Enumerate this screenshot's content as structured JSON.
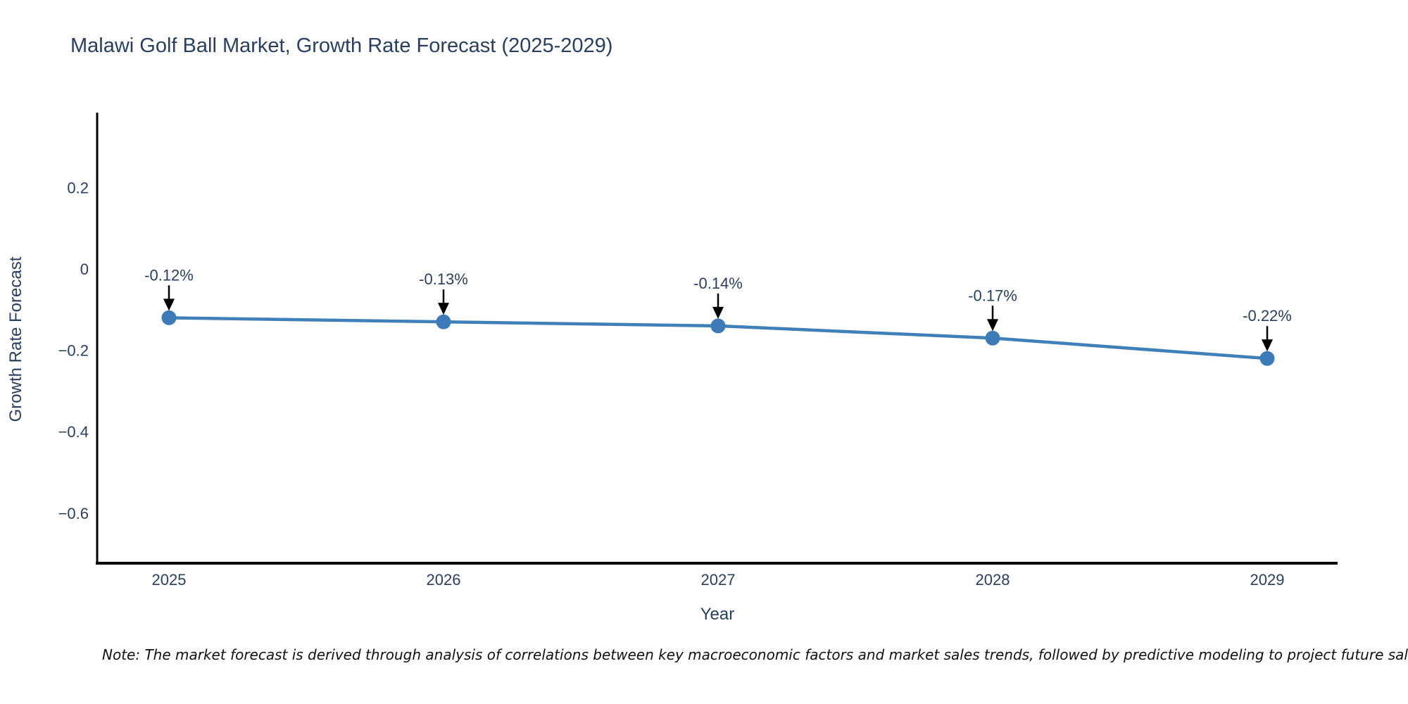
{
  "chart_data": {
    "type": "line",
    "title": "Malawi Golf Ball Market, Growth Rate Forecast (2025-2029)",
    "xlabel": "Year",
    "ylabel": "Growth Rate Forecast",
    "x": [
      2025,
      2026,
      2027,
      2028,
      2029
    ],
    "y": [
      -0.12,
      -0.13,
      -0.14,
      -0.17,
      -0.22
    ],
    "point_labels": [
      "-0.12%",
      "-0.13%",
      "-0.14%",
      "-0.17%",
      "-0.22%"
    ],
    "x_tick_labels": [
      "2025",
      "2026",
      "2027",
      "2028",
      "2029"
    ],
    "y_tick_labels": [
      "0.2",
      "0",
      "−0.2",
      "−0.4",
      "−0.6"
    ],
    "y_tick_values": [
      0.2,
      0,
      -0.2,
      -0.4,
      -0.6
    ],
    "xlim": [
      2024.74,
      2029.26
    ],
    "ylim": [
      -0.72,
      0.39
    ],
    "grid": false,
    "legend": false,
    "colors": {
      "line": "#3f7fba",
      "marker": "#3c7ab8",
      "axis": "#000000",
      "tick_text": "#2a3f5f",
      "title_text": "#2a3f5f",
      "annotation_text": "#2a3f5f",
      "annotation_arrow": "#000000"
    }
  },
  "note": {
    "text": "Note: The market forecast is derived through analysis of correlations between key macroeconomic factors and market sales trends, followed by predictive modeling to project future sales."
  }
}
